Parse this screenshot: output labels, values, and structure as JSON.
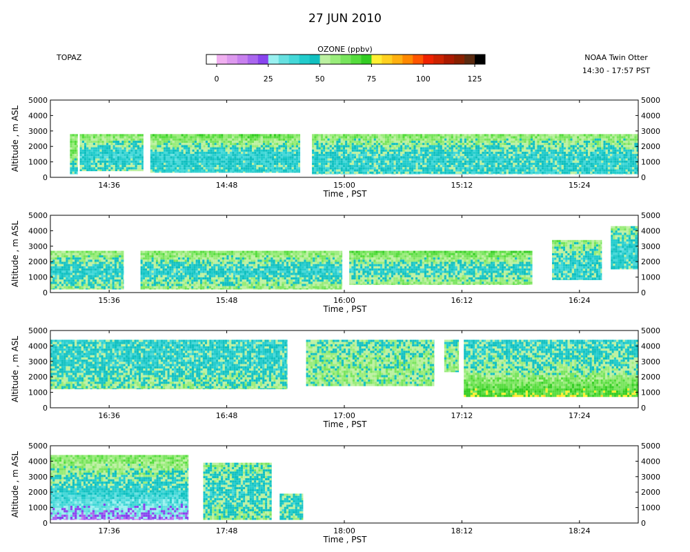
{
  "header": {
    "title": "27 JUN 2010",
    "left_label": "TOPAZ",
    "platform": "NOAA Twin Otter",
    "time_range": "14:30 - 17:57 PST"
  },
  "colorbar": {
    "label": "OZONE (ppbv)",
    "tick_labels": [
      "0",
      "25",
      "50",
      "75",
      "100",
      "125"
    ],
    "colors": [
      "#ffffff",
      "#f0b0f0",
      "#dd99ee",
      "#c880ee",
      "#aa66ee",
      "#8844ee",
      "#99f0f0",
      "#66e0e0",
      "#44d8d8",
      "#22cccc",
      "#11c0c0",
      "#bbf0a0",
      "#99ec7a",
      "#77e45c",
      "#55dc3c",
      "#33cc22",
      "#ffee33",
      "#ffd020",
      "#ffb010",
      "#ff8800",
      "#ff5500",
      "#ee2200",
      "#cc2200",
      "#aa1a00",
      "#882000",
      "#5a2a10",
      "#000000"
    ]
  },
  "chart_data": [
    {
      "type": "heatmap",
      "panel": 1,
      "xlabel": "Time , PST",
      "ylabel": "Altitude , m ASL",
      "x_ticks": [
        "14:36",
        "14:48",
        "15:00",
        "15:12",
        "15:24"
      ],
      "y_ticks": [
        "0",
        "1000",
        "2000",
        "3000",
        "4000",
        "5000"
      ],
      "xlim_minutes": [
        0,
        60
      ],
      "ylim": [
        0,
        5000
      ],
      "segments": [
        {
          "start": 2.0,
          "end": 2.8,
          "bottom_alt": 200,
          "top_alt": 2800,
          "ozone_low": 40,
          "ozone_mid": 60,
          "ozone_top": 60
        },
        {
          "start": 3.0,
          "end": 9.5,
          "bottom_alt": 400,
          "top_alt": 2800,
          "ozone_low": 50,
          "ozone_mid": 40,
          "ozone_top": 62
        },
        {
          "start": 10.2,
          "end": 25.5,
          "bottom_alt": 300,
          "top_alt": 2800,
          "ozone_low": 45,
          "ozone_mid": 42,
          "ozone_top": 65
        },
        {
          "start": 26.7,
          "end": 60,
          "bottom_alt": 200,
          "top_alt": 2800,
          "ozone_low": 45,
          "ozone_mid": 44,
          "ozone_top": 60
        }
      ]
    },
    {
      "type": "heatmap",
      "panel": 2,
      "xlabel": "Time , PST",
      "ylabel": "Altitude , m ASL",
      "x_ticks": [
        "15:36",
        "15:48",
        "16:00",
        "16:12",
        "16:24"
      ],
      "y_ticks": [
        "0",
        "1000",
        "2000",
        "3000",
        "4000",
        "5000"
      ],
      "xlim_minutes": [
        0,
        60
      ],
      "ylim": [
        0,
        5000
      ],
      "segments": [
        {
          "start": 0,
          "end": 7.5,
          "bottom_alt": 200,
          "top_alt": 2700,
          "ozone_low": 55,
          "ozone_mid": 42,
          "ozone_top": 60
        },
        {
          "start": 9.2,
          "end": 29.8,
          "bottom_alt": 200,
          "top_alt": 2700,
          "ozone_low": 60,
          "ozone_mid": 42,
          "ozone_top": 62
        },
        {
          "start": 30.5,
          "end": 49.2,
          "bottom_alt": 500,
          "top_alt": 2700,
          "ozone_low": 60,
          "ozone_mid": 44,
          "ozone_top": 65
        },
        {
          "start": 51.2,
          "end": 56.3,
          "bottom_alt": 800,
          "top_alt": 3400,
          "ozone_low": 45,
          "ozone_mid": 45,
          "ozone_top": 58
        },
        {
          "start": 57.2,
          "end": 60,
          "bottom_alt": 1500,
          "top_alt": 4300,
          "ozone_low": 45,
          "ozone_mid": 42,
          "ozone_top": 55
        }
      ]
    },
    {
      "type": "heatmap",
      "panel": 3,
      "xlabel": "Time , PST",
      "ylabel": "Altitude , m ASL",
      "x_ticks": [
        "16:36",
        "16:48",
        "17:00",
        "17:12",
        "17:24"
      ],
      "y_ticks": [
        "0",
        "1000",
        "2000",
        "3000",
        "4000",
        "5000"
      ],
      "xlim_minutes": [
        0,
        60
      ],
      "ylim": [
        0,
        5000
      ],
      "segments": [
        {
          "start": 0,
          "end": 24.2,
          "bottom_alt": 1200,
          "top_alt": 4400,
          "ozone_low": 55,
          "ozone_mid": 45,
          "ozone_top": 45
        },
        {
          "start": 26.1,
          "end": 39.2,
          "bottom_alt": 1400,
          "top_alt": 4400,
          "ozone_low": 55,
          "ozone_mid": 55,
          "ozone_top": 50
        },
        {
          "start": 40.2,
          "end": 41.7,
          "bottom_alt": 2300,
          "top_alt": 4400,
          "ozone_low": 55,
          "ozone_mid": 55,
          "ozone_top": 50
        },
        {
          "start": 42.2,
          "end": 60,
          "bottom_alt": 700,
          "top_alt": 4400,
          "ozone_low": 75,
          "ozone_mid": 52,
          "ozone_top": 45
        }
      ]
    },
    {
      "type": "heatmap",
      "panel": 4,
      "xlabel": "Time , PST",
      "ylabel": "Altitude , m ASL",
      "x_ticks": [
        "17:36",
        "17:48",
        "18:00",
        "18:12",
        "18:24"
      ],
      "y_ticks": [
        "0",
        "1000",
        "2000",
        "3000",
        "4000",
        "5000"
      ],
      "xlim_minutes": [
        0,
        60
      ],
      "ylim": [
        0,
        5000
      ],
      "segments": [
        {
          "start": 0,
          "end": 14.1,
          "bottom_alt": 200,
          "top_alt": 4400,
          "ozone_low": 20,
          "ozone_mid": 45,
          "ozone_top": 62
        },
        {
          "start": 15.6,
          "end": 22.6,
          "bottom_alt": 200,
          "top_alt": 3900,
          "ozone_low": 55,
          "ozone_mid": 45,
          "ozone_top": 55
        },
        {
          "start": 23.4,
          "end": 25.8,
          "bottom_alt": 200,
          "top_alt": 1900,
          "ozone_low": 55,
          "ozone_mid": 45,
          "ozone_top": 50
        }
      ]
    }
  ]
}
